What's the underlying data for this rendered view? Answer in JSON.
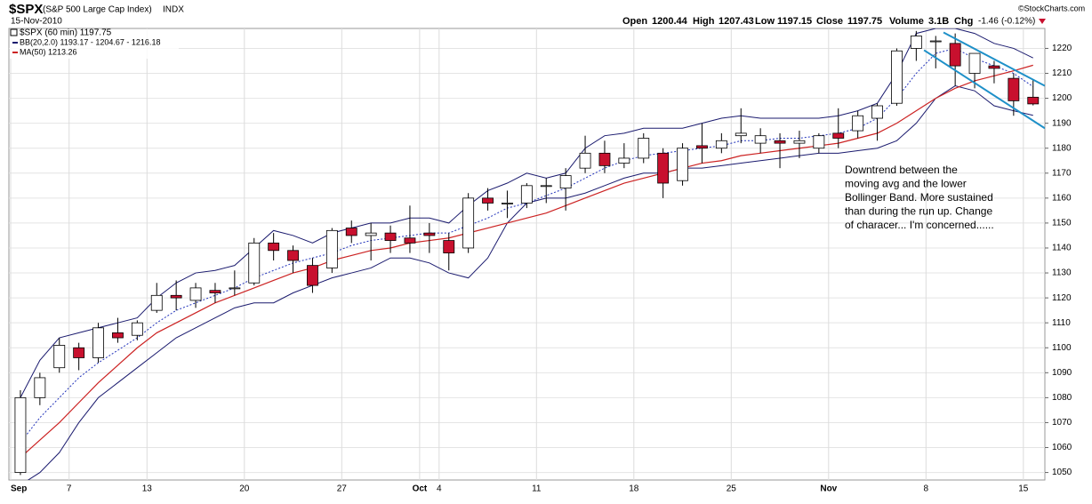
{
  "header": {
    "symbol": "$SPX",
    "description": "(S&P 500 Large Cap Index)",
    "exchange": "INDX",
    "date": "15-Nov-2010",
    "open_label": "Open",
    "high_label": "High",
    "low_label": "Low",
    "close_label": "Close",
    "volume_label": "Volume",
    "volume": "3.1B",
    "chg_label": "Chg",
    "chg": -1.46,
    "chg_pct": "(-0.12%)",
    "credit": "©StockCharts.com"
  },
  "chart_data": {
    "type": "candlestick",
    "categories": [
      "Sep",
      null,
      null,
      "7",
      null,
      null,
      null,
      "13",
      null,
      null,
      null,
      null,
      "20",
      null,
      null,
      null,
      null,
      "27",
      null,
      null,
      null,
      "Oct",
      "4",
      null,
      null,
      null,
      null,
      "11",
      null,
      null,
      null,
      null,
      "18",
      null,
      null,
      null,
      null,
      "25",
      null,
      null,
      null,
      null,
      "Nov",
      null,
      null,
      null,
      null,
      "8",
      null,
      null,
      null,
      null,
      "15"
    ],
    "candles": {
      "name": "$SPX (60 min) 1197.75",
      "up_color": "#000000",
      "down_color": "#c8102e",
      "open": [
        1050,
        1080,
        1092,
        1100,
        1096,
        1106,
        1105,
        1115,
        1121,
        1119,
        1123,
        1124,
        1126,
        1142,
        1139,
        1133,
        1132,
        1148,
        1145,
        1146,
        1144,
        1146,
        1143,
        1140,
        1160,
        1158,
        1158,
        1165,
        1164,
        1172,
        1178,
        1174,
        1176,
        1178,
        1167,
        1181,
        1180,
        1185,
        1182,
        1183,
        1182,
        1180,
        1186,
        1187,
        1192,
        1198,
        1220,
        1223,
        1222,
        1210,
        1213,
        1208,
        1200.44
      ],
      "high": [
        1083,
        1090,
        1104,
        1102,
        1110,
        1112,
        1111,
        1126,
        1127,
        1126,
        1126,
        1131,
        1144,
        1146,
        1141,
        1136,
        1148,
        1151,
        1150,
        1149,
        1157,
        1150,
        1146,
        1162,
        1164,
        1163,
        1166,
        1168,
        1172,
        1185,
        1183,
        1182,
        1186,
        1180,
        1182,
        1190,
        1186,
        1196,
        1188,
        1186,
        1187,
        1186,
        1196,
        1195,
        1198,
        1220,
        1227,
        1225,
        1226,
        1218,
        1215,
        1210,
        1207.43
      ],
      "low": [
        1049,
        1077,
        1090,
        1091,
        1094,
        1102,
        1103,
        1114,
        1115,
        1116,
        1118,
        1121,
        1125,
        1135,
        1130,
        1122,
        1130,
        1142,
        1135,
        1138,
        1138,
        1138,
        1131,
        1138,
        1155,
        1152,
        1156,
        1158,
        1155,
        1170,
        1170,
        1172,
        1174,
        1160,
        1165,
        1174,
        1178,
        1182,
        1178,
        1172,
        1176,
        1178,
        1180,
        1184,
        1183,
        1197,
        1215,
        1212,
        1205,
        1204,
        1206,
        1193,
        1197.15
      ],
      "close": [
        1080,
        1088,
        1101,
        1096,
        1108,
        1104,
        1110,
        1121,
        1120,
        1124,
        1122,
        1124,
        1142,
        1139,
        1135,
        1125,
        1147,
        1145,
        1146,
        1143,
        1142,
        1145,
        1138,
        1160,
        1158,
        1158,
        1165,
        1165,
        1169,
        1178,
        1173,
        1176,
        1184,
        1166,
        1180,
        1180,
        1183,
        1186,
        1185,
        1182,
        1183,
        1185,
        1184,
        1193,
        1197,
        1219,
        1225,
        1223,
        1213,
        1218,
        1212,
        1199,
        1197.75
      ]
    },
    "bollinger": {
      "name": "BB(20,2.0) 1193.17 - 1204.67 - 1216.18",
      "color": "#1a1a6e",
      "upper": [
        1080,
        1095,
        1104,
        1106,
        1108,
        1110,
        1112,
        1120,
        1126,
        1130,
        1131,
        1133,
        1140,
        1147,
        1145,
        1142,
        1146,
        1148,
        1150,
        1150,
        1152,
        1152,
        1150,
        1157,
        1163,
        1166,
        1170,
        1168,
        1170,
        1180,
        1185,
        1186,
        1188,
        1188,
        1188,
        1190,
        1192,
        1193,
        1192,
        1192,
        1192,
        1192,
        1193,
        1195,
        1198,
        1210,
        1226,
        1228,
        1228,
        1226,
        1222,
        1220,
        1216.18
      ],
      "middle": [
        1062,
        1072,
        1080,
        1088,
        1094,
        1099,
        1104,
        1110,
        1115,
        1118,
        1121,
        1124,
        1128,
        1131,
        1134,
        1136,
        1138,
        1141,
        1143,
        1144,
        1145,
        1146,
        1146,
        1149,
        1152,
        1156,
        1158,
        1161,
        1164,
        1168,
        1172,
        1175,
        1177,
        1178,
        1179,
        1180,
        1181,
        1183,
        1183,
        1184,
        1184,
        1185,
        1186,
        1188,
        1192,
        1200,
        1210,
        1218,
        1220,
        1216,
        1213,
        1210,
        1204.67
      ],
      "lower": [
        1045,
        1050,
        1058,
        1070,
        1080,
        1086,
        1092,
        1098,
        1104,
        1108,
        1112,
        1116,
        1118,
        1118,
        1122,
        1125,
        1128,
        1130,
        1132,
        1136,
        1136,
        1134,
        1130,
        1128,
        1136,
        1150,
        1158,
        1160,
        1160,
        1162,
        1165,
        1168,
        1170,
        1170,
        1172,
        1172,
        1173,
        1174,
        1175,
        1176,
        1177,
        1178,
        1178,
        1179,
        1180,
        1183,
        1190,
        1200,
        1205,
        1203,
        1197,
        1195,
        1193.17
      ]
    },
    "moving_average": {
      "name": "MA(50) 1213.26",
      "color": "#cc2222",
      "values": [
        1056,
        1063,
        1070,
        1078,
        1086,
        1093,
        1100,
        1106,
        1110,
        1114,
        1118,
        1121,
        1124,
        1127,
        1130,
        1132,
        1135,
        1137,
        1139,
        1140,
        1142,
        1143,
        1144,
        1146,
        1148,
        1150,
        1152,
        1154,
        1157,
        1160,
        1163,
        1166,
        1168,
        1170,
        1172,
        1174,
        1175,
        1177,
        1178,
        1179,
        1180,
        1181,
        1182,
        1184,
        1186,
        1190,
        1195,
        1200,
        1204,
        1207,
        1209,
        1211,
        1213.26
      ]
    },
    "trendlines": [
      {
        "color": "#1e90c8",
        "points": [
          [
            47.9,
            1226.4
          ],
          [
            53.1,
            1205
          ]
        ]
      },
      {
        "color": "#1e90c8",
        "points": [
          [
            46.9,
            1219.3
          ],
          [
            53.1,
            1188
          ]
        ]
      }
    ],
    "annotation": [
      "Downtrend  between the",
      "moving avg and the lower",
      "Bollinger Band.  More sustained",
      "than during the run up.  Change",
      "of characer... I'm concerned......"
    ],
    "ylim": [
      1047,
      1228
    ],
    "yticks": [
      1050,
      1060,
      1070,
      1080,
      1090,
      1100,
      1110,
      1120,
      1130,
      1140,
      1150,
      1160,
      1170,
      1180,
      1190,
      1200,
      1210,
      1220
    ],
    "grid": true
  }
}
